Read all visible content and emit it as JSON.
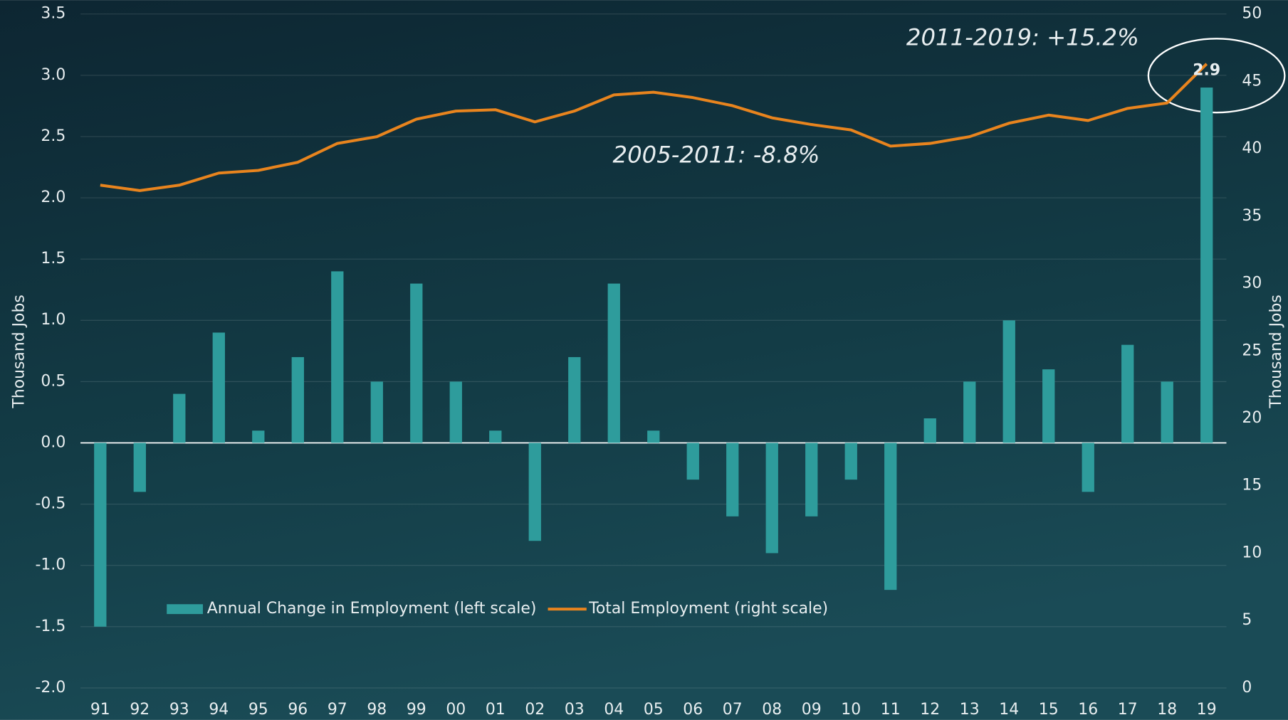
{
  "chart_data": {
    "type": "bar",
    "categories": [
      "91",
      "92",
      "93",
      "94",
      "95",
      "96",
      "97",
      "98",
      "99",
      "00",
      "01",
      "02",
      "03",
      "04",
      "05",
      "06",
      "07",
      "08",
      "09",
      "10",
      "11",
      "12",
      "13",
      "14",
      "15",
      "16",
      "17",
      "18",
      "19"
    ],
    "series": [
      {
        "name": "Annual Change in Employment (left scale)",
        "type": "bar",
        "color": "#2e9c9c",
        "values": [
          -1.5,
          -0.4,
          0.4,
          0.9,
          0.1,
          0.7,
          1.4,
          0.5,
          1.3,
          0.5,
          0.1,
          -0.8,
          0.7,
          1.3,
          0.1,
          -0.3,
          -0.6,
          -0.9,
          -0.6,
          -0.3,
          -1.2,
          0.2,
          0.5,
          1.0,
          0.6,
          -0.4,
          0.8,
          0.5,
          2.9
        ]
      },
      {
        "name": "Total Employment (right scale)",
        "type": "line",
        "axis": "y2",
        "color": "#e8841e",
        "values": [
          37.3,
          36.9,
          37.3,
          38.2,
          38.4,
          39.0,
          40.4,
          40.9,
          42.2,
          42.8,
          42.9,
          42.0,
          42.8,
          44.0,
          44.2,
          43.8,
          43.2,
          42.3,
          41.8,
          41.4,
          40.2,
          40.4,
          40.9,
          41.9,
          42.5,
          42.1,
          43.0,
          43.4,
          46.3
        ]
      }
    ],
    "ylabel": "Thousand Jobs",
    "y2label": "Thousand Jobs",
    "ylim": [
      -2,
      3.5
    ],
    "yticks": [
      {
        "value": -2,
        "label": "-2.0"
      },
      -1.5,
      {
        "value": -1,
        "label": "-1.0"
      },
      -0.5,
      {
        "value": 0,
        "label": "0.0"
      },
      0.5,
      {
        "value": 1,
        "label": "1.0"
      },
      1.5,
      {
        "value": 2,
        "label": "2.0"
      },
      2.5,
      {
        "value": 3,
        "label": "3.0"
      },
      3.5
    ],
    "y2lim": [
      0,
      50
    ],
    "y2ticks": [
      0,
      5,
      10,
      15,
      20,
      25,
      30,
      35,
      40,
      45,
      50
    ],
    "grid": true,
    "legend": "bottom-left",
    "annotations": [
      "2011-2019: +15.2%",
      "2005-2011: -8.8%"
    ]
  }
}
